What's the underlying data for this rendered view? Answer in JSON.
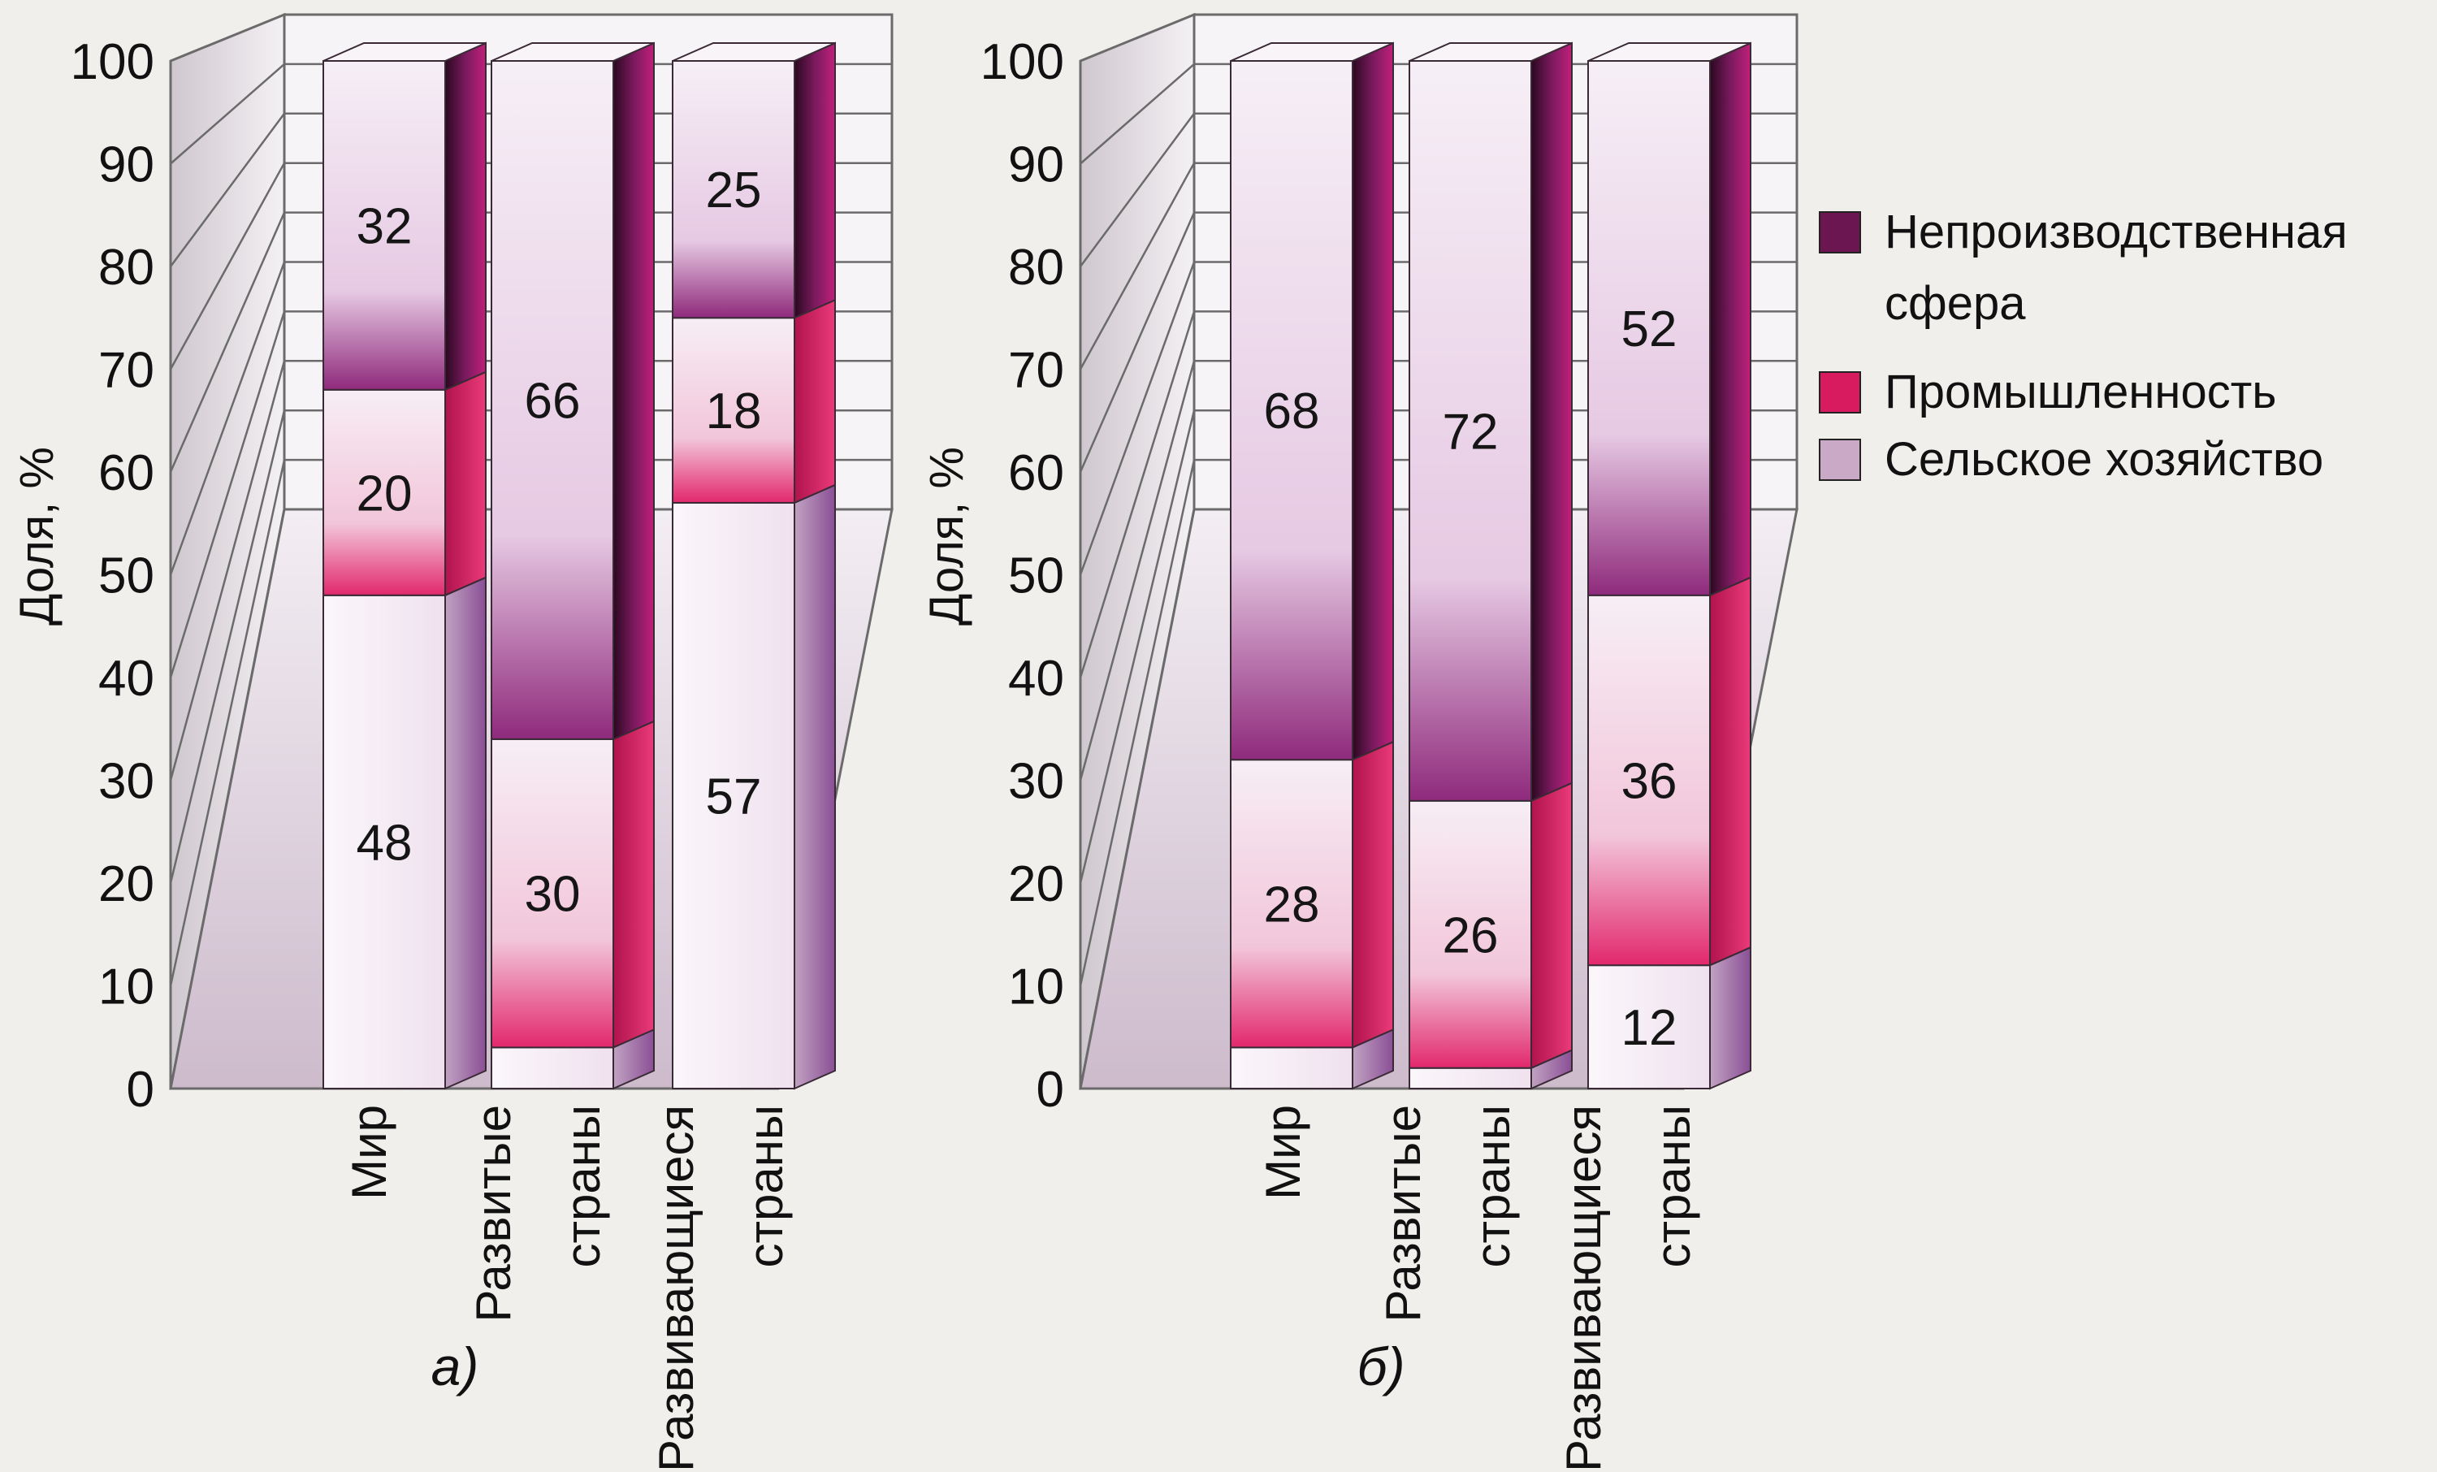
{
  "chart_data": [
    {
      "type": "bar",
      "stacked": true,
      "panel_label": "а)",
      "ylabel": "Доля, %",
      "ylim": [
        0,
        100
      ],
      "yticks": [
        0,
        10,
        20,
        30,
        40,
        50,
        60,
        70,
        80,
        90,
        100
      ],
      "categories": [
        [
          "Мир"
        ],
        [
          "Развитые",
          "страны"
        ],
        [
          "Развивающиеся",
          "страны"
        ]
      ],
      "series": [
        {
          "name": "Сельское хозяйство",
          "values": [
            48,
            4,
            57
          ],
          "labels": [
            "48",
            "4",
            "57"
          ]
        },
        {
          "name": "Промышленность",
          "values": [
            20,
            30,
            18
          ],
          "labels": [
            "20",
            "30",
            "18"
          ]
        },
        {
          "name": "Непроизводственная сфера",
          "values": [
            32,
            66,
            25
          ],
          "labels": [
            "32",
            "66",
            "25"
          ]
        }
      ],
      "grid": true
    },
    {
      "type": "bar",
      "stacked": true,
      "panel_label": "б)",
      "ylabel": "Доля, %",
      "ylim": [
        0,
        100
      ],
      "yticks": [
        0,
        10,
        20,
        30,
        40,
        50,
        60,
        70,
        80,
        90,
        100
      ],
      "categories": [
        [
          "Мир"
        ],
        [
          "Развитые",
          "страны"
        ],
        [
          "Развивающиеся",
          "страны"
        ]
      ],
      "series": [
        {
          "name": "Сельское хозяйство",
          "values": [
            4,
            2,
            12
          ],
          "labels": [
            "4",
            "2",
            "12"
          ]
        },
        {
          "name": "Промышленность",
          "values": [
            28,
            26,
            36
          ],
          "labels": [
            "28",
            "26",
            "36"
          ]
        },
        {
          "name": "Непроизводственная сфера",
          "values": [
            68,
            72,
            52
          ],
          "labels": [
            "68",
            "72",
            "52"
          ]
        }
      ],
      "grid": true
    }
  ],
  "legend": {
    "position": "right",
    "items": [
      {
        "label_lines": [
          "Непроизводственная",
          "сфера"
        ],
        "color": "#6b1650"
      },
      {
        "label_lines": [
          "Промышленность"
        ],
        "color": "#d81b5e"
      },
      {
        "label_lines": [
          "Сельское хозяйство"
        ],
        "color": "#c9a9c6"
      }
    ]
  },
  "colors": {
    "agriculture": "#f7f1f6",
    "industry": "#d81b5e",
    "services": "#6b1650",
    "grid": "#6b6b6b",
    "background": "#f1efec"
  }
}
